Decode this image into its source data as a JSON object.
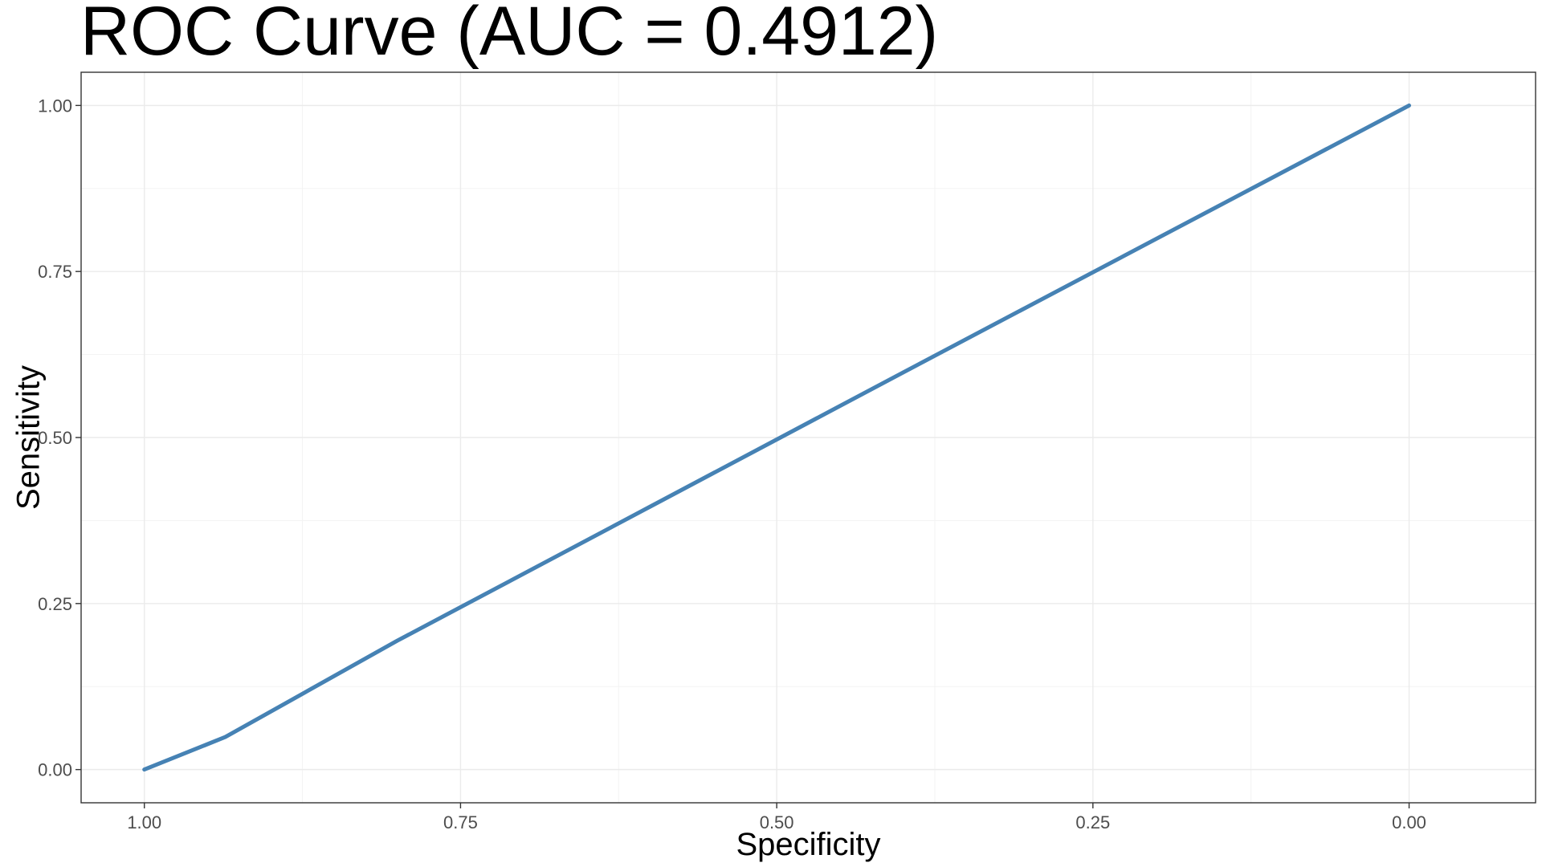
{
  "chart_data": {
    "type": "line",
    "title": "ROC Curve (AUC = 0.4912)",
    "xlabel": "Specificity",
    "ylabel": "Sensitivity",
    "x_reversed": true,
    "xlim": [
      1.05,
      -0.1
    ],
    "ylim": [
      -0.05,
      1.05
    ],
    "x_ticks": [
      1.0,
      0.75,
      0.5,
      0.25,
      0.0
    ],
    "x_tick_labels": [
      "1.00",
      "0.75",
      "0.50",
      "0.25",
      "0.00"
    ],
    "y_ticks": [
      0.0,
      0.25,
      0.5,
      0.75,
      1.0
    ],
    "y_tick_labels": [
      "0.00",
      "0.25",
      "0.50",
      "0.75",
      "1.00"
    ],
    "x_minor_ticks": [
      0.875,
      0.625,
      0.375,
      0.125
    ],
    "y_minor_ticks": [
      0.125,
      0.375,
      0.625,
      0.875
    ],
    "grid": true,
    "series": [
      {
        "color": "#4682b4",
        "points": [
          {
            "specificity": 1.0,
            "sensitivity": 0.0
          },
          {
            "specificity": 0.936,
            "sensitivity": 0.049
          },
          {
            "specificity": 0.8,
            "sensitivity": 0.194
          },
          {
            "specificity": 0.6,
            "sensitivity": 0.396
          },
          {
            "specificity": 0.4,
            "sensitivity": 0.598
          },
          {
            "specificity": 0.2,
            "sensitivity": 0.799
          },
          {
            "specificity": 0.0,
            "sensitivity": 1.0
          }
        ]
      }
    ]
  }
}
